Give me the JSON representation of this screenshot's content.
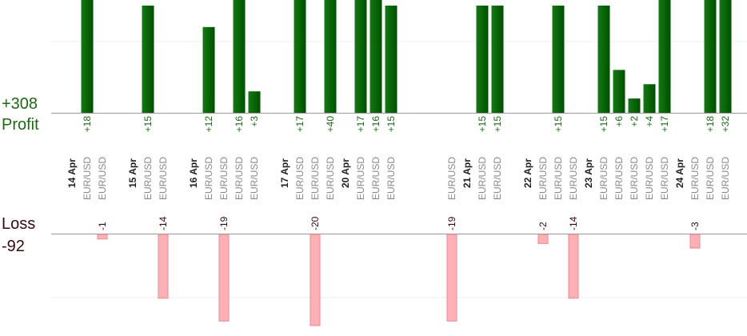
{
  "colors": {
    "profit_bar": "#0a6a08",
    "profit_text": "#1a6b12",
    "loss_bar": "#ffb0b4",
    "loss_bar_border": "#e88a90",
    "loss_text": "#3a0a10",
    "grid": "#eeeeee",
    "axis": "#999999",
    "date_text": "#222222",
    "pair_text": "#8a8a8a"
  },
  "labels": {
    "profit_total": "+308",
    "profit_title": "Profit",
    "loss_title": "Loss",
    "loss_total": "-92"
  },
  "chart_data": {
    "type": "bar",
    "title": "",
    "dates": [
      {
        "label": "14 Apr",
        "slot": 0
      },
      {
        "label": "15 Apr",
        "slot": 4
      },
      {
        "label": "16 Apr",
        "slot": 8
      },
      {
        "label": "17 Apr",
        "slot": 14
      },
      {
        "label": "20 Apr",
        "slot": 18
      },
      {
        "label": "21 Apr",
        "slot": 26
      },
      {
        "label": "22 Apr",
        "slot": 30
      },
      {
        "label": "23 Apr",
        "slot": 34
      },
      {
        "label": "24 Apr",
        "slot": 40
      }
    ],
    "trades": [
      {
        "slot": 1,
        "pair": "EUR/USD",
        "profit": 18,
        "profit_label": "+18"
      },
      {
        "slot": 2,
        "pair": "EUR/USD",
        "loss": -1,
        "loss_label": "-1"
      },
      {
        "slot": 5,
        "pair": "EUR/USD",
        "profit": 15,
        "profit_label": "+15"
      },
      {
        "slot": 6,
        "pair": "EUR/USD",
        "loss": -14,
        "loss_label": "-14"
      },
      {
        "slot": 9,
        "pair": "EUR/USD",
        "profit": 12,
        "profit_label": "+12"
      },
      {
        "slot": 10,
        "pair": "EUR/USD",
        "loss": -19,
        "loss_label": "-19"
      },
      {
        "slot": 11,
        "pair": "EUR/USD",
        "profit": 16,
        "profit_label": "+16"
      },
      {
        "slot": 12,
        "pair": "EUR/USD",
        "profit": 3,
        "profit_label": "+3"
      },
      {
        "slot": 15,
        "pair": "EUR/USD",
        "profit": 17,
        "profit_label": "+17"
      },
      {
        "slot": 16,
        "pair": "EUR/USD",
        "loss": -20,
        "loss_label": "-20"
      },
      {
        "slot": 17,
        "pair": "EUR/USD",
        "profit": 40,
        "profit_label": "+40"
      },
      {
        "slot": 19,
        "pair": "EUR/USD",
        "profit": 17,
        "profit_label": "+17"
      },
      {
        "slot": 20,
        "pair": "EUR/USD",
        "profit": 16,
        "profit_label": "+16"
      },
      {
        "slot": 21,
        "pair": "EUR/USD",
        "profit": 15,
        "profit_label": "+15"
      },
      {
        "slot": 25,
        "pair": "EUR/USD",
        "loss": -19,
        "loss_label": "-19"
      },
      {
        "slot": 27,
        "pair": "EUR/USD",
        "profit": 15,
        "profit_label": "+15"
      },
      {
        "slot": 28,
        "pair": "EUR/USD",
        "profit": 15,
        "profit_label": "+15"
      },
      {
        "slot": 31,
        "pair": "EUR/USD",
        "loss": -2,
        "loss_label": "-2"
      },
      {
        "slot": 32,
        "pair": "EUR/USD",
        "profit": 15,
        "profit_label": "+15"
      },
      {
        "slot": 33,
        "pair": "EUR/USD",
        "loss": -14,
        "loss_label": "-14"
      },
      {
        "slot": 35,
        "pair": "EUR/USD",
        "profit": 15,
        "profit_label": "+15"
      },
      {
        "slot": 36,
        "pair": "EUR/USD",
        "profit": 6,
        "profit_label": "+6"
      },
      {
        "slot": 37,
        "pair": "EUR/USD",
        "profit": 2,
        "profit_label": "+2"
      },
      {
        "slot": 38,
        "pair": "EUR/USD",
        "profit": 4,
        "profit_label": "+4"
      },
      {
        "slot": 39,
        "pair": "EUR/USD",
        "profit": 17,
        "profit_label": "+17"
      },
      {
        "slot": 41,
        "pair": "EUR/USD",
        "loss": -3,
        "loss_label": "-3"
      },
      {
        "slot": 42,
        "pair": "EUR/USD",
        "profit": 18,
        "profit_label": "+18"
      },
      {
        "slot": 43,
        "pair": "EUR/USD",
        "profit": 32,
        "profit_label": "+32"
      }
    ],
    "profit_axis_max": 15,
    "loss_axis_max": 20,
    "grid": true
  }
}
